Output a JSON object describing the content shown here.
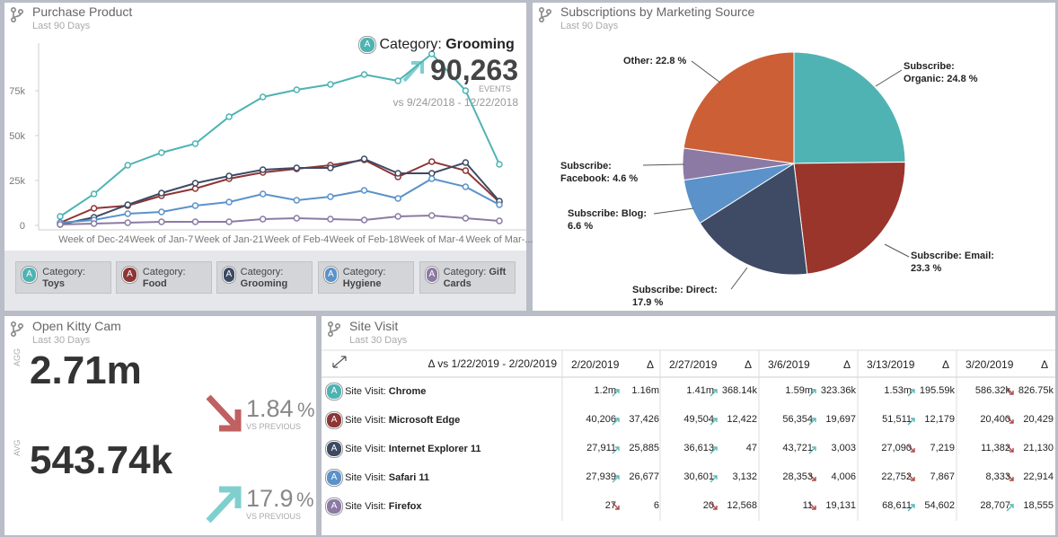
{
  "badge": "A",
  "purchase": {
    "title": "Purchase Product",
    "subtitle": "Last 90 Days",
    "chart_data": {
      "type": "line",
      "categories": [
        null,
        "Week of Dec-24",
        null,
        "Week of Jan-7",
        null,
        "Week of Jan-21",
        null,
        "Week of Feb-4",
        null,
        "Week of Feb-18",
        null,
        "Week of Mar-4",
        null,
        "Week of Mar-..."
      ],
      "ylim": [
        0,
        100000
      ],
      "yticks": [
        0,
        {
          "value": 25000,
          "label": "25k"
        },
        {
          "value": 50000,
          "label": "50k"
        },
        {
          "value": 75000,
          "label": "75k"
        }
      ],
      "legend_prefix": "Category:",
      "series": [
        {
          "name": "Toys",
          "color": "#4fb3b3",
          "values": [
            5000,
            17500,
            33500,
            40500,
            45500,
            60500,
            71500,
            75500,
            78500,
            84000,
            80500,
            95500,
            75000,
            34000
          ]
        },
        {
          "name": "Food",
          "color": "#8e3535",
          "values": [
            1500,
            9500,
            11000,
            16500,
            20500,
            26000,
            29500,
            31500,
            33500,
            36500,
            27000,
            35500,
            30500,
            13000
          ]
        },
        {
          "name": "Grooming",
          "color": "#3d4a63",
          "values": [
            500,
            4500,
            11500,
            18000,
            23500,
            27500,
            31000,
            32000,
            32000,
            37000,
            29000,
            29000,
            35000,
            13500
          ]
        },
        {
          "name": "Hygiene",
          "color": "#5b92c9",
          "values": [
            1500,
            3000,
            6500,
            7500,
            11000,
            13000,
            17500,
            14000,
            16000,
            19500,
            15000,
            26000,
            21500,
            11500
          ]
        },
        {
          "name": "Gift Cards",
          "color": "#8c7aa5",
          "values": [
            500,
            1000,
            1500,
            2000,
            2000,
            2000,
            3500,
            4000,
            3500,
            3000,
            5000,
            5500,
            4000,
            2500
          ]
        }
      ]
    },
    "tooltip": {
      "category": "Grooming",
      "value": "90,263",
      "unit": "EVENTS",
      "comparison": "vs 9/24/2018 - 12/22/2018"
    }
  },
  "subscriptions": {
    "title": "Subscriptions by Marketing Source",
    "subtitle": "Last 90 Days",
    "chart_data": {
      "type": "pie",
      "values": [
        24.8,
        23.3,
        17.9,
        6.6,
        4.6,
        22.8
      ],
      "value_labels": [
        "Subscribe: Organic: 24.8 %",
        "Subscribe: Email: 23.3 %",
        "Subscribe: Direct: 17.9 %",
        "Subscribe: Blog: 6.6 %",
        "Subscribe: Facebook: 4.6 %",
        "Other: 22.8 %"
      ],
      "colors": [
        "#4fb3b3",
        "#9a352c",
        "#3f4b65",
        "#5b92c9",
        "#8c7aa5",
        "#cc5f36"
      ]
    }
  },
  "kitty": {
    "title": "Open Kitty Cam",
    "subtitle": "Last 30 Days",
    "metrics": [
      {
        "label": "AGG",
        "value": "2.71m",
        "change": "1.84",
        "unit": "%",
        "note": "VS PREVIOUS",
        "direction": "down"
      },
      {
        "label": "AVG",
        "value": "543.74k",
        "change": "17.9",
        "unit": "%",
        "note": "VS PREVIOUS",
        "direction": "up"
      }
    ]
  },
  "site": {
    "title": "Site Visit",
    "subtitle": "Last 30 Days",
    "table": {
      "comparison": "Δ vs 1/22/2019 - 2/20/2019",
      "delta_symbol": "Δ",
      "columns": [
        "2/20/2019",
        "2/27/2019",
        "3/6/2019",
        "3/13/2019",
        "3/20/2019"
      ],
      "prefix": "Site Visit:",
      "rows": [
        {
          "name": "Chrome",
          "color": "#4fb3b3",
          "cells": [
            {
              "value": "1.2m",
              "delta": "1.16m",
              "dir": "up"
            },
            {
              "value": "1.41m",
              "delta": "368.14k",
              "dir": "up"
            },
            {
              "value": "1.59m",
              "delta": "323.36k",
              "dir": "up"
            },
            {
              "value": "1.53m",
              "delta": "195.59k",
              "dir": "up"
            },
            {
              "value": "586.32k",
              "delta": "826.75k",
              "dir": "down"
            }
          ]
        },
        {
          "name": "Microsoft Edge",
          "color": "#8e3535",
          "cells": [
            {
              "value": "40,206",
              "delta": "37,426",
              "dir": "up"
            },
            {
              "value": "49,504",
              "delta": "12,422",
              "dir": "up"
            },
            {
              "value": "56,354",
              "delta": "19,697",
              "dir": "up"
            },
            {
              "value": "51,511",
              "delta": "12,179",
              "dir": "up"
            },
            {
              "value": "20,400",
              "delta": "20,429",
              "dir": "down"
            }
          ]
        },
        {
          "name": "Internet Explorer 11",
          "color": "#3d4a63",
          "cells": [
            {
              "value": "27,911",
              "delta": "25,885",
              "dir": "up"
            },
            {
              "value": "36,613",
              "delta": "47",
              "dir": "up"
            },
            {
              "value": "43,721",
              "delta": "3,003",
              "dir": "up"
            },
            {
              "value": "27,090",
              "delta": "7,219",
              "dir": "down"
            },
            {
              "value": "11,382",
              "delta": "21,130",
              "dir": "down"
            }
          ]
        },
        {
          "name": "Safari 11",
          "color": "#5b92c9",
          "cells": [
            {
              "value": "27,939",
              "delta": "26,677",
              "dir": "up"
            },
            {
              "value": "30,601",
              "delta": "3,132",
              "dir": "up"
            },
            {
              "value": "28,353",
              "delta": "4,006",
              "dir": "down"
            },
            {
              "value": "22,752",
              "delta": "7,867",
              "dir": "down"
            },
            {
              "value": "8,333",
              "delta": "22,914",
              "dir": "down"
            }
          ]
        },
        {
          "name": "Firefox",
          "color": "#8c7aa5",
          "cells": [
            {
              "value": "27",
              "delta": "6",
              "dir": "down"
            },
            {
              "value": "20",
              "delta": "12,568",
              "dir": "down"
            },
            {
              "value": "11",
              "delta": "19,131",
              "dir": "down"
            },
            {
              "value": "68,611",
              "delta": "54,602",
              "dir": "up"
            },
            {
              "value": "28,707",
              "delta": "18,555",
              "dir": "up"
            }
          ]
        }
      ]
    }
  }
}
